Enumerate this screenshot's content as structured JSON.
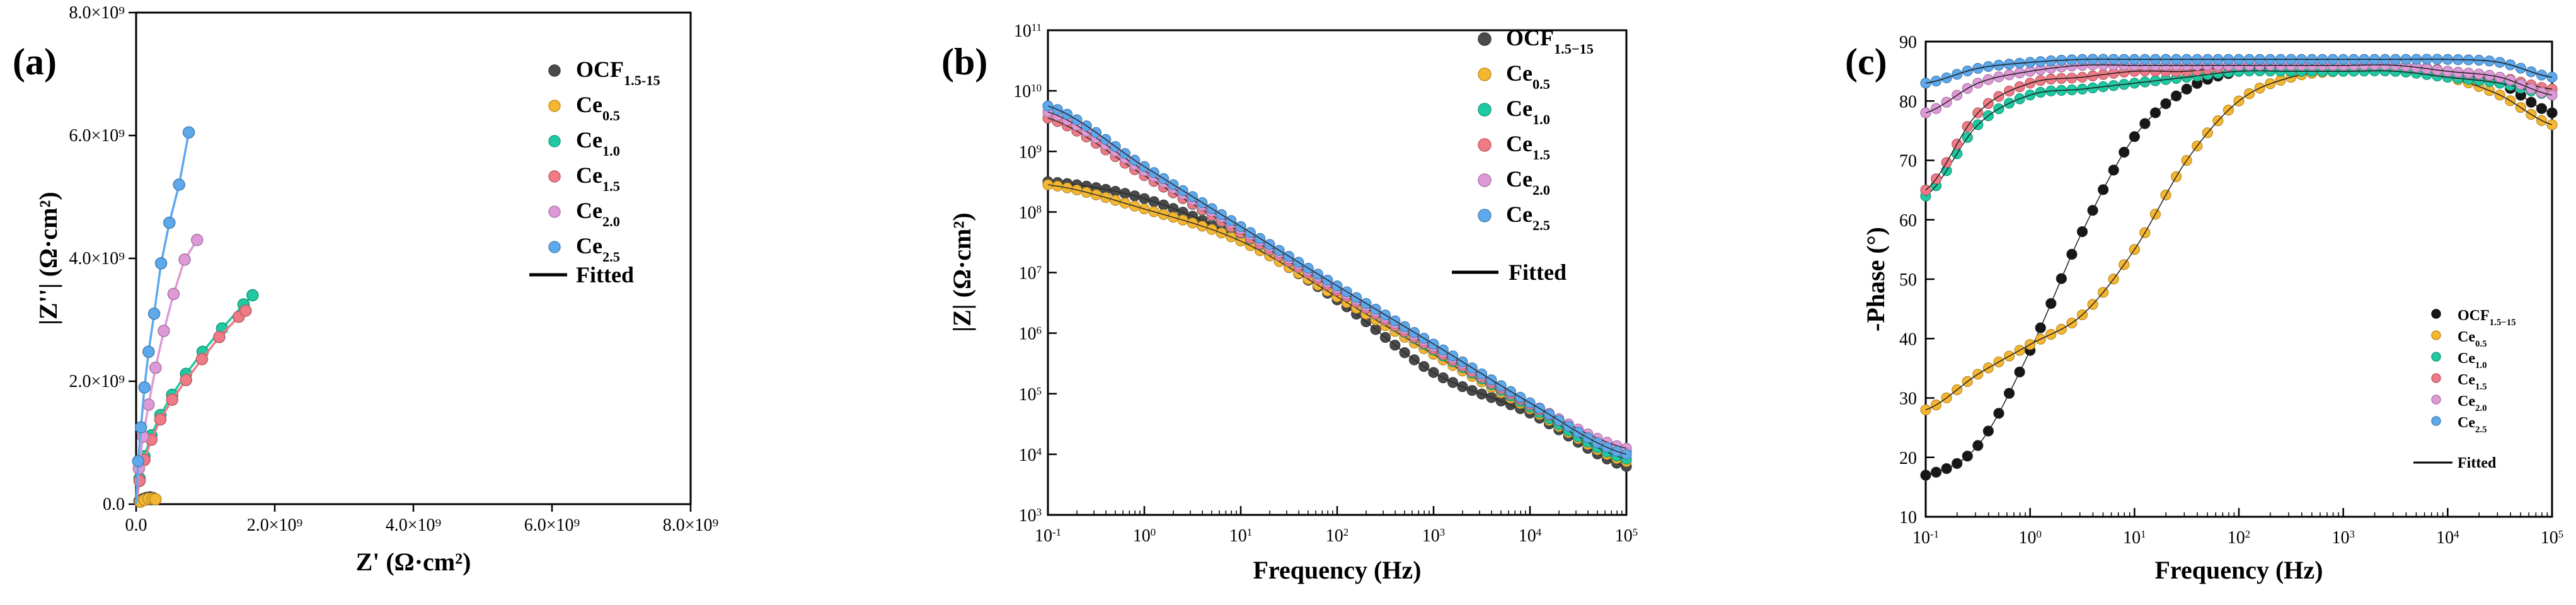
{
  "series_meta": [
    {
      "key": "ocf",
      "name": "OCF",
      "sub_a": "1.5-15",
      "sub_b": "1.5−15",
      "color": "#4a4a4a"
    },
    {
      "key": "ce05",
      "name": "Ce",
      "sub_a": "0.5",
      "sub_b": "0.5",
      "color": "#f5b731"
    },
    {
      "key": "ce10",
      "name": "Ce",
      "sub_a": "1.0",
      "sub_b": "1.0",
      "color": "#1fc9a2"
    },
    {
      "key": "ce15",
      "name": "Ce",
      "sub_a": "1.5",
      "sub_b": "1.5",
      "color": "#f07a86"
    },
    {
      "key": "ce20",
      "name": "Ce",
      "sub_a": "2.0",
      "sub_b": "2.0",
      "color": "#de9ad8"
    },
    {
      "key": "ce25",
      "name": "Ce",
      "sub_a": "2.5",
      "sub_b": "2.5",
      "color": "#5ea8ec"
    }
  ],
  "fitted_label": "Fitted",
  "chart_data": [
    {
      "panel": "(a)",
      "type": "scatter",
      "xlabel": "Z' (Ω·cm²)",
      "ylabel": "|Z''| (Ω·cm²)",
      "xlim": [
        0,
        8000000000.0
      ],
      "ylim": [
        0,
        8000000000.0
      ],
      "xticks": [
        "0.0",
        "2.0×10⁹",
        "4.0×10⁹",
        "6.0×10⁹",
        "8.0×10⁹"
      ],
      "yticks": [
        "0.0",
        "2.0×10⁹",
        "4.0×10⁹",
        "6.0×10⁹",
        "8.0×10⁹"
      ],
      "tick_values": [
        0,
        2000000000.0,
        4000000000.0,
        6000000000.0,
        8000000000.0
      ],
      "series": [
        {
          "key": "ocf",
          "x": [
            50000000.0,
            100000000.0,
            150000000.0,
            200000000.0,
            240000000.0
          ],
          "y": [
            50000000.0,
            80000000.0,
            100000000.0,
            110000000.0,
            100000000.0
          ]
        },
        {
          "key": "ce05",
          "x": [
            60000000.0,
            120000000.0,
            180000000.0,
            240000000.0,
            280000000.0
          ],
          "y": [
            40000000.0,
            70000000.0,
            90000000.0,
            90000000.0,
            80000000.0
          ]
        },
        {
          "key": "ce10",
          "x": [
            0.0,
            50000000.0,
            120000000.0,
            220000000.0,
            350000000.0,
            520000000.0,
            720000000.0,
            960000000.0,
            1240000000.0,
            1550000000.0,
            1680000000.0
          ],
          "y": [
            0.0,
            420000000.0,
            780000000.0,
            1120000000.0,
            1450000000.0,
            1780000000.0,
            2120000000.0,
            2480000000.0,
            2860000000.0,
            3250000000.0,
            3400000000.0
          ]
        },
        {
          "key": "ce15",
          "x": [
            0.0,
            50000000.0,
            120000000.0,
            220000000.0,
            350000000.0,
            520000000.0,
            720000000.0,
            950000000.0,
            1200000000.0,
            1480000000.0,
            1580000000.0
          ],
          "y": [
            0.0,
            380000000.0,
            720000000.0,
            1050000000.0,
            1380000000.0,
            1700000000.0,
            2020000000.0,
            2360000000.0,
            2720000000.0,
            3050000000.0,
            3150000000.0
          ]
        },
        {
          "key": "ce20",
          "x": [
            0.0,
            40000000.0,
            100000000.0,
            180000000.0,
            280000000.0,
            400000000.0,
            540000000.0,
            700000000.0,
            880000000.0
          ],
          "y": [
            0.0,
            580000000.0,
            1100000000.0,
            1620000000.0,
            2220000000.0,
            2820000000.0,
            3420000000.0,
            3980000000.0,
            4300000000.0
          ]
        },
        {
          "key": "ce25",
          "x": [
            0.0,
            30000000.0,
            70000000.0,
            120000000.0,
            180000000.0,
            260000000.0,
            360000000.0,
            480000000.0,
            620000000.0,
            760000000.0
          ],
          "y": [
            0.0,
            700000000.0,
            1250000000.0,
            1900000000.0,
            2480000000.0,
            3100000000.0,
            3920000000.0,
            4580000000.0,
            5200000000.0,
            6050000000.0
          ]
        }
      ],
      "legend": "top-right"
    },
    {
      "panel": "(b)",
      "type": "line",
      "xscale": "log",
      "yscale": "log",
      "xlabel": "Frequency (Hz)",
      "ylabel": "|Z| (Ω·cm²)",
      "xlim_exp": [
        -1,
        5
      ],
      "ylim_exp": [
        3,
        11
      ],
      "series": [
        {
          "key": "ocf",
          "log_f": [
            -1,
            0,
            1,
            2,
            3,
            4,
            5
          ],
          "log_z": [
            8.5,
            8.22,
            7.55,
            6.55,
            5.35,
            4.68,
            3.8
          ]
        },
        {
          "key": "ce05",
          "log_f": [
            -1,
            0,
            1,
            2,
            3,
            4,
            5
          ],
          "log_z": [
            8.45,
            8.05,
            7.52,
            6.6,
            5.65,
            4.75,
            3.88
          ]
        },
        {
          "key": "ce10",
          "log_f": [
            -1,
            0,
            1,
            2,
            3,
            4,
            5
          ],
          "log_z": [
            9.55,
            8.6,
            7.65,
            6.7,
            5.72,
            4.78,
            3.92
          ]
        },
        {
          "key": "ce15",
          "log_f": [
            -1,
            0,
            1,
            2,
            3,
            4,
            5
          ],
          "log_z": [
            9.55,
            8.6,
            7.66,
            6.7,
            5.74,
            4.82,
            4.05
          ]
        },
        {
          "key": "ce20",
          "log_f": [
            -1,
            0,
            1,
            2,
            3,
            4,
            5
          ],
          "log_z": [
            9.65,
            8.68,
            7.72,
            6.74,
            5.78,
            4.85,
            4.1
          ]
        },
        {
          "key": "ce25",
          "log_f": [
            -1,
            0,
            1,
            2,
            3,
            4,
            5
          ],
          "log_z": [
            9.75,
            8.75,
            7.76,
            6.78,
            5.82,
            4.85,
            4.0
          ]
        }
      ],
      "legend": "top-right"
    },
    {
      "panel": "(c)",
      "type": "line",
      "xscale": "log",
      "xlabel": "Frequency (Hz)",
      "ylabel": "-Phase (°)",
      "xlim_exp": [
        -1,
        5
      ],
      "ylim": [
        10,
        90
      ],
      "yticks": [
        10,
        20,
        30,
        40,
        50,
        60,
        70,
        80,
        90
      ],
      "series": [
        {
          "key": "ocf",
          "log_f": [
            -1,
            -0.5,
            0,
            0.5,
            1,
            1.5,
            2,
            2.5,
            3,
            3.5,
            4,
            4.5,
            5
          ],
          "phase": [
            17,
            22,
            38,
            58,
            74,
            82,
            85,
            86,
            86,
            86,
            85,
            83,
            78
          ]
        },
        {
          "key": "ce05",
          "log_f": [
            -1,
            -0.5,
            0,
            0.5,
            1,
            1.5,
            2,
            2.5,
            3,
            3.5,
            4,
            4.5,
            5
          ],
          "phase": [
            28,
            34,
            39,
            44,
            55,
            70,
            80,
            84,
            85,
            85,
            84,
            81,
            76
          ]
        },
        {
          "key": "ce10",
          "log_f": [
            -1,
            -0.5,
            0,
            0.5,
            1,
            1.5,
            2,
            2.5,
            3,
            3.5,
            4,
            4.5,
            5
          ],
          "phase": [
            64,
            76,
            81,
            82,
            83,
            84,
            85,
            85,
            85,
            85,
            84,
            83,
            81
          ]
        },
        {
          "key": "ce15",
          "log_f": [
            -1,
            -0.5,
            0,
            0.5,
            1,
            1.5,
            2,
            2.5,
            3,
            3.5,
            4,
            4.5,
            5
          ],
          "phase": [
            65,
            78,
            83,
            84,
            85,
            85,
            86,
            86,
            86,
            86,
            85,
            84,
            82
          ]
        },
        {
          "key": "ce20",
          "log_f": [
            -1,
            -0.5,
            0,
            0.5,
            1,
            1.5,
            2,
            2.5,
            3,
            3.5,
            4,
            4.5,
            5
          ],
          "phase": [
            78,
            83,
            85,
            86,
            86,
            86,
            86,
            86,
            86,
            86,
            85,
            84,
            81
          ]
        },
        {
          "key": "ce25",
          "log_f": [
            -1,
            -0.5,
            0,
            0.5,
            1,
            1.5,
            2,
            2.5,
            3,
            3.5,
            4,
            4.5,
            5
          ],
          "phase": [
            83,
            85.5,
            86.5,
            87,
            87,
            87,
            87,
            87,
            87,
            87,
            87,
            86.5,
            84
          ]
        }
      ],
      "legend": "right"
    }
  ]
}
